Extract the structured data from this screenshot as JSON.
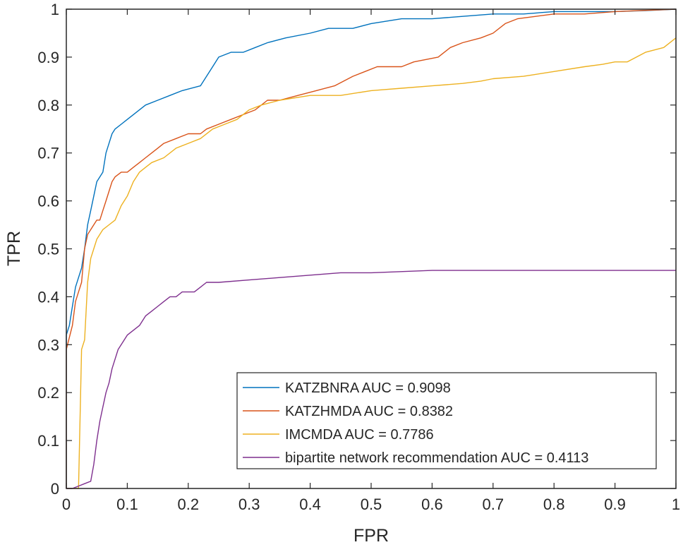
{
  "chart_data": {
    "type": "line",
    "title": "",
    "xlabel": "FPR",
    "ylabel": "TPR",
    "xlim": [
      0,
      1
    ],
    "ylim": [
      0,
      1
    ],
    "grid": false,
    "legend_position": "bottom-right",
    "xticks": [
      "0",
      "0.1",
      "0.2",
      "0.3",
      "0.4",
      "0.5",
      "0.6",
      "0.7",
      "0.8",
      "0.9",
      "1"
    ],
    "yticks": [
      "0",
      "0.1",
      "0.2",
      "0.3",
      "0.4",
      "0.5",
      "0.6",
      "0.7",
      "0.8",
      "0.9",
      "1"
    ],
    "series": [
      {
        "name": "KATZBNRA AUC = 0.9098",
        "color": "#0072BD",
        "points": [
          [
            0,
            0
          ],
          [
            0,
            0.32
          ],
          [
            0.005,
            0.34
          ],
          [
            0.01,
            0.38
          ],
          [
            0.015,
            0.42
          ],
          [
            0.02,
            0.44
          ],
          [
            0.025,
            0.46
          ],
          [
            0.03,
            0.5
          ],
          [
            0.035,
            0.55
          ],
          [
            0.04,
            0.58
          ],
          [
            0.045,
            0.61
          ],
          [
            0.05,
            0.64
          ],
          [
            0.055,
            0.65
          ],
          [
            0.06,
            0.66
          ],
          [
            0.065,
            0.7
          ],
          [
            0.07,
            0.72
          ],
          [
            0.075,
            0.74
          ],
          [
            0.08,
            0.75
          ],
          [
            0.09,
            0.76
          ],
          [
            0.1,
            0.77
          ],
          [
            0.11,
            0.78
          ],
          [
            0.12,
            0.79
          ],
          [
            0.13,
            0.8
          ],
          [
            0.15,
            0.81
          ],
          [
            0.17,
            0.82
          ],
          [
            0.19,
            0.83
          ],
          [
            0.22,
            0.84
          ],
          [
            0.23,
            0.86
          ],
          [
            0.24,
            0.88
          ],
          [
            0.25,
            0.9
          ],
          [
            0.27,
            0.91
          ],
          [
            0.29,
            0.91
          ],
          [
            0.31,
            0.92
          ],
          [
            0.33,
            0.93
          ],
          [
            0.36,
            0.94
          ],
          [
            0.4,
            0.95
          ],
          [
            0.43,
            0.96
          ],
          [
            0.47,
            0.96
          ],
          [
            0.5,
            0.97
          ],
          [
            0.55,
            0.98
          ],
          [
            0.6,
            0.98
          ],
          [
            0.65,
            0.985
          ],
          [
            0.7,
            0.99
          ],
          [
            0.75,
            0.99
          ],
          [
            0.8,
            0.995
          ],
          [
            0.9,
            0.995
          ],
          [
            0.95,
            0.997
          ],
          [
            1.0,
            1.0
          ]
        ]
      },
      {
        "name": "KATZHMDA AUC = 0.8382",
        "color": "#D95319",
        "points": [
          [
            0,
            0
          ],
          [
            0,
            0.29
          ],
          [
            0.01,
            0.34
          ],
          [
            0.015,
            0.39
          ],
          [
            0.02,
            0.41
          ],
          [
            0.025,
            0.43
          ],
          [
            0.03,
            0.5
          ],
          [
            0.035,
            0.53
          ],
          [
            0.04,
            0.54
          ],
          [
            0.045,
            0.55
          ],
          [
            0.05,
            0.56
          ],
          [
            0.055,
            0.56
          ],
          [
            0.06,
            0.58
          ],
          [
            0.065,
            0.6
          ],
          [
            0.07,
            0.62
          ],
          [
            0.075,
            0.64
          ],
          [
            0.08,
            0.65
          ],
          [
            0.09,
            0.66
          ],
          [
            0.1,
            0.66
          ],
          [
            0.11,
            0.67
          ],
          [
            0.12,
            0.68
          ],
          [
            0.13,
            0.69
          ],
          [
            0.14,
            0.7
          ],
          [
            0.15,
            0.71
          ],
          [
            0.16,
            0.72
          ],
          [
            0.18,
            0.73
          ],
          [
            0.2,
            0.74
          ],
          [
            0.22,
            0.74
          ],
          [
            0.23,
            0.75
          ],
          [
            0.25,
            0.76
          ],
          [
            0.27,
            0.77
          ],
          [
            0.29,
            0.78
          ],
          [
            0.31,
            0.79
          ],
          [
            0.33,
            0.81
          ],
          [
            0.35,
            0.81
          ],
          [
            0.38,
            0.82
          ],
          [
            0.41,
            0.83
          ],
          [
            0.44,
            0.84
          ],
          [
            0.47,
            0.86
          ],
          [
            0.49,
            0.87
          ],
          [
            0.51,
            0.88
          ],
          [
            0.55,
            0.88
          ],
          [
            0.57,
            0.89
          ],
          [
            0.61,
            0.9
          ],
          [
            0.62,
            0.91
          ],
          [
            0.63,
            0.92
          ],
          [
            0.65,
            0.93
          ],
          [
            0.68,
            0.94
          ],
          [
            0.7,
            0.95
          ],
          [
            0.72,
            0.97
          ],
          [
            0.74,
            0.98
          ],
          [
            0.77,
            0.985
          ],
          [
            0.8,
            0.99
          ],
          [
            0.85,
            0.99
          ],
          [
            0.9,
            0.995
          ],
          [
            1.0,
            1.0
          ]
        ]
      },
      {
        "name": "IMCMDA AUC = 0.7786",
        "color": "#EDB120",
        "points": [
          [
            0,
            0
          ],
          [
            0.02,
            0
          ],
          [
            0.025,
            0.29
          ],
          [
            0.03,
            0.31
          ],
          [
            0.035,
            0.43
          ],
          [
            0.04,
            0.48
          ],
          [
            0.045,
            0.5
          ],
          [
            0.05,
            0.52
          ],
          [
            0.06,
            0.54
          ],
          [
            0.07,
            0.55
          ],
          [
            0.08,
            0.56
          ],
          [
            0.09,
            0.59
          ],
          [
            0.1,
            0.61
          ],
          [
            0.11,
            0.64
          ],
          [
            0.12,
            0.66
          ],
          [
            0.13,
            0.67
          ],
          [
            0.14,
            0.68
          ],
          [
            0.16,
            0.69
          ],
          [
            0.18,
            0.71
          ],
          [
            0.2,
            0.72
          ],
          [
            0.22,
            0.73
          ],
          [
            0.24,
            0.75
          ],
          [
            0.26,
            0.76
          ],
          [
            0.28,
            0.77
          ],
          [
            0.3,
            0.79
          ],
          [
            0.32,
            0.8
          ],
          [
            0.35,
            0.81
          ],
          [
            0.4,
            0.82
          ],
          [
            0.45,
            0.82
          ],
          [
            0.5,
            0.83
          ],
          [
            0.55,
            0.835
          ],
          [
            0.6,
            0.84
          ],
          [
            0.65,
            0.845
          ],
          [
            0.68,
            0.85
          ],
          [
            0.7,
            0.855
          ],
          [
            0.75,
            0.86
          ],
          [
            0.8,
            0.87
          ],
          [
            0.85,
            0.88
          ],
          [
            0.88,
            0.885
          ],
          [
            0.9,
            0.89
          ],
          [
            0.92,
            0.89
          ],
          [
            0.95,
            0.91
          ],
          [
            0.98,
            0.92
          ],
          [
            1.0,
            0.94
          ]
        ]
      },
      {
        "name": "bipartite network recommendation AUC = 0.4113",
        "color": "#7E2F8E",
        "points": [
          [
            0,
            0
          ],
          [
            0.01,
            0
          ],
          [
            0.02,
            0.005
          ],
          [
            0.03,
            0.01
          ],
          [
            0.04,
            0.015
          ],
          [
            0.045,
            0.05
          ],
          [
            0.05,
            0.1
          ],
          [
            0.055,
            0.14
          ],
          [
            0.06,
            0.17
          ],
          [
            0.065,
            0.2
          ],
          [
            0.07,
            0.22
          ],
          [
            0.075,
            0.25
          ],
          [
            0.08,
            0.27
          ],
          [
            0.085,
            0.29
          ],
          [
            0.09,
            0.3
          ],
          [
            0.095,
            0.31
          ],
          [
            0.1,
            0.32
          ],
          [
            0.11,
            0.33
          ],
          [
            0.12,
            0.34
          ],
          [
            0.13,
            0.36
          ],
          [
            0.14,
            0.37
          ],
          [
            0.15,
            0.38
          ],
          [
            0.16,
            0.39
          ],
          [
            0.17,
            0.4
          ],
          [
            0.18,
            0.4
          ],
          [
            0.19,
            0.41
          ],
          [
            0.2,
            0.41
          ],
          [
            0.21,
            0.41
          ],
          [
            0.22,
            0.42
          ],
          [
            0.23,
            0.43
          ],
          [
            0.25,
            0.43
          ],
          [
            0.3,
            0.435
          ],
          [
            0.35,
            0.44
          ],
          [
            0.4,
            0.445
          ],
          [
            0.45,
            0.45
          ],
          [
            0.5,
            0.45
          ],
          [
            0.6,
            0.455
          ],
          [
            0.7,
            0.455
          ],
          [
            0.8,
            0.455
          ],
          [
            0.9,
            0.455
          ],
          [
            1.0,
            0.455
          ]
        ]
      }
    ]
  }
}
